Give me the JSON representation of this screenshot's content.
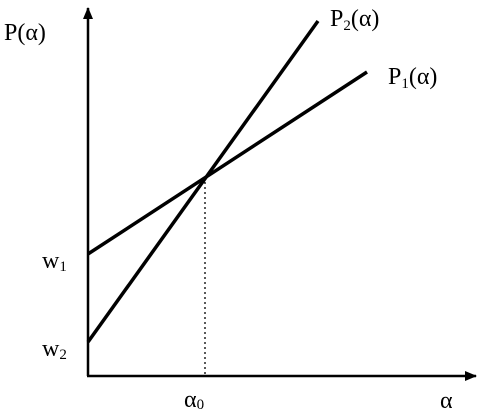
{
  "axes": {
    "y_label": "P(α)",
    "x_label": "α"
  },
  "lines": [
    {
      "label": "P",
      "subscript": "2",
      "argument": "(α)"
    },
    {
      "label": "P",
      "subscript": "1",
      "argument": "(α)"
    }
  ],
  "intercepts": [
    {
      "label": "w",
      "subscript": "1"
    },
    {
      "label": "w",
      "subscript": "2"
    }
  ],
  "intersection": {
    "label": "α",
    "subscript": "0"
  }
}
